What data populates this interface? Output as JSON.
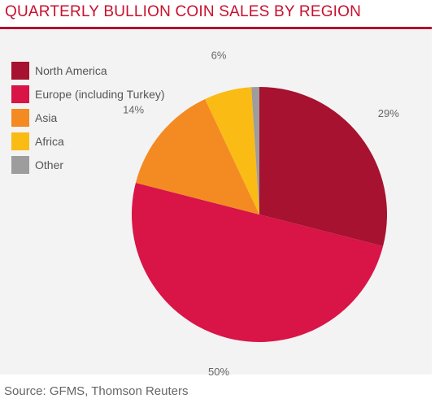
{
  "title": "QUARTERLY BULLION COIN SALES BY REGION",
  "source": "Source: GFMS, Thomson Reuters",
  "chart_data": {
    "type": "pie",
    "title": "QUARTERLY BULLION COIN SALES BY REGION",
    "legend_position": "top-left",
    "slices": [
      {
        "label": "North America",
        "value": 29,
        "value_label": "29%",
        "color": "#a6122f"
      },
      {
        "label": "Europe (including Turkey)",
        "value": 50,
        "value_label": "50%",
        "color": "#d91447"
      },
      {
        "label": "Asia",
        "value": 14,
        "value_label": "14%",
        "color": "#f38b22"
      },
      {
        "label": "Africa",
        "value": 6,
        "value_label": "6%",
        "color": "#fbbb15"
      },
      {
        "label": "Other",
        "value": 1,
        "value_label": "",
        "color": "#9d9d9d"
      }
    ]
  }
}
